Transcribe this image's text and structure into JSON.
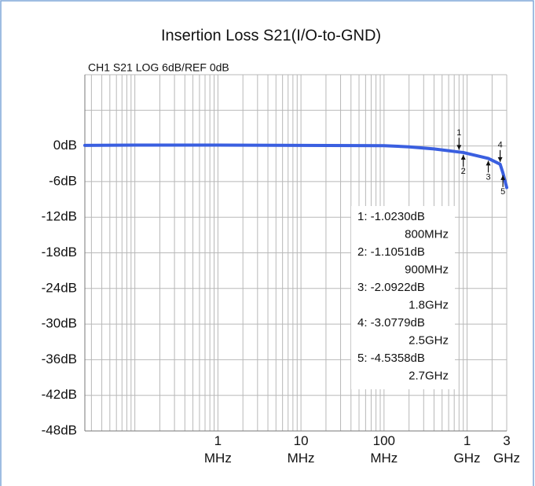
{
  "chart_data": {
    "type": "line",
    "title": "Insertion Loss S21(I/O-to-GND)",
    "subtitle": "CH1 S21  LOG    6dB/REF 0dB",
    "log_x": true,
    "grid": true,
    "xlim": [
      0.025,
      3000
    ],
    "ylim": [
      -48,
      12
    ],
    "xticks": [
      {
        "value": 1,
        "label": "1\nMHz"
      },
      {
        "value": 10,
        "label": "10\nMHz"
      },
      {
        "value": 100,
        "label": "100\nMHz"
      },
      {
        "value": 1000,
        "label": "1\nGHz"
      },
      {
        "value": 3000,
        "label": "3\nGHz"
      }
    ],
    "yticks": [
      {
        "value": 0,
        "label": "0dB"
      },
      {
        "value": -6,
        "label": "-6dB"
      },
      {
        "value": -12,
        "label": "-12dB"
      },
      {
        "value": -18,
        "label": "-18dB"
      },
      {
        "value": -24,
        "label": "-24dB"
      },
      {
        "value": -30,
        "label": "-30dB"
      },
      {
        "value": -36,
        "label": "-36dB"
      },
      {
        "value": -42,
        "label": "-42dB"
      },
      {
        "value": -48,
        "label": "-48dB"
      }
    ],
    "ygrid": [
      12,
      6,
      0,
      -6,
      -12,
      -18,
      -24,
      -30,
      -36,
      -42,
      -48
    ],
    "xgrid": [
      0.03,
      0.04,
      0.05,
      0.06,
      0.07,
      0.08,
      0.09,
      0.1,
      0.2,
      0.3,
      0.4,
      0.5,
      0.6,
      0.7,
      0.8,
      0.9,
      1,
      2,
      3,
      4,
      5,
      6,
      7,
      8,
      9,
      10,
      20,
      30,
      40,
      50,
      60,
      70,
      80,
      90,
      100,
      200,
      300,
      400,
      500,
      600,
      700,
      800,
      900,
      1000,
      2000,
      3000
    ],
    "series": [
      {
        "color": "#3a5fe0",
        "x": [
          0.025,
          0.1,
          1,
          10,
          100,
          200,
          400,
          800,
          900,
          1800,
          2500,
          2700,
          3000
        ],
        "values": [
          0.1,
          0.15,
          0.15,
          0.1,
          0.05,
          -0.15,
          -0.5,
          -1.023,
          -1.1051,
          -2.0922,
          -3.0779,
          -4.5358,
          -7
        ]
      }
    ],
    "markers": [
      {
        "name": "1",
        "x": 800,
        "value": -1.023,
        "readout": "1: -1.0230dB",
        "freq": "800MHz",
        "side": "above"
      },
      {
        "name": "2",
        "x": 900,
        "value": -1.1051,
        "readout": "2: -1.1051dB",
        "freq": "900MHz",
        "side": "below"
      },
      {
        "name": "3",
        "x": 1800,
        "value": -2.0922,
        "readout": "3: -2.0922dB",
        "freq": "1.8GHz",
        "side": "below"
      },
      {
        "name": "4",
        "x": 2500,
        "value": -3.0779,
        "readout": "4: -3.0779dB",
        "freq": "2.5GHz",
        "side": "above"
      },
      {
        "name": "5",
        "x": 2700,
        "value": -4.5358,
        "readout": "5: -4.5358dB",
        "freq": "2.7GHz",
        "side": "below"
      }
    ]
  }
}
